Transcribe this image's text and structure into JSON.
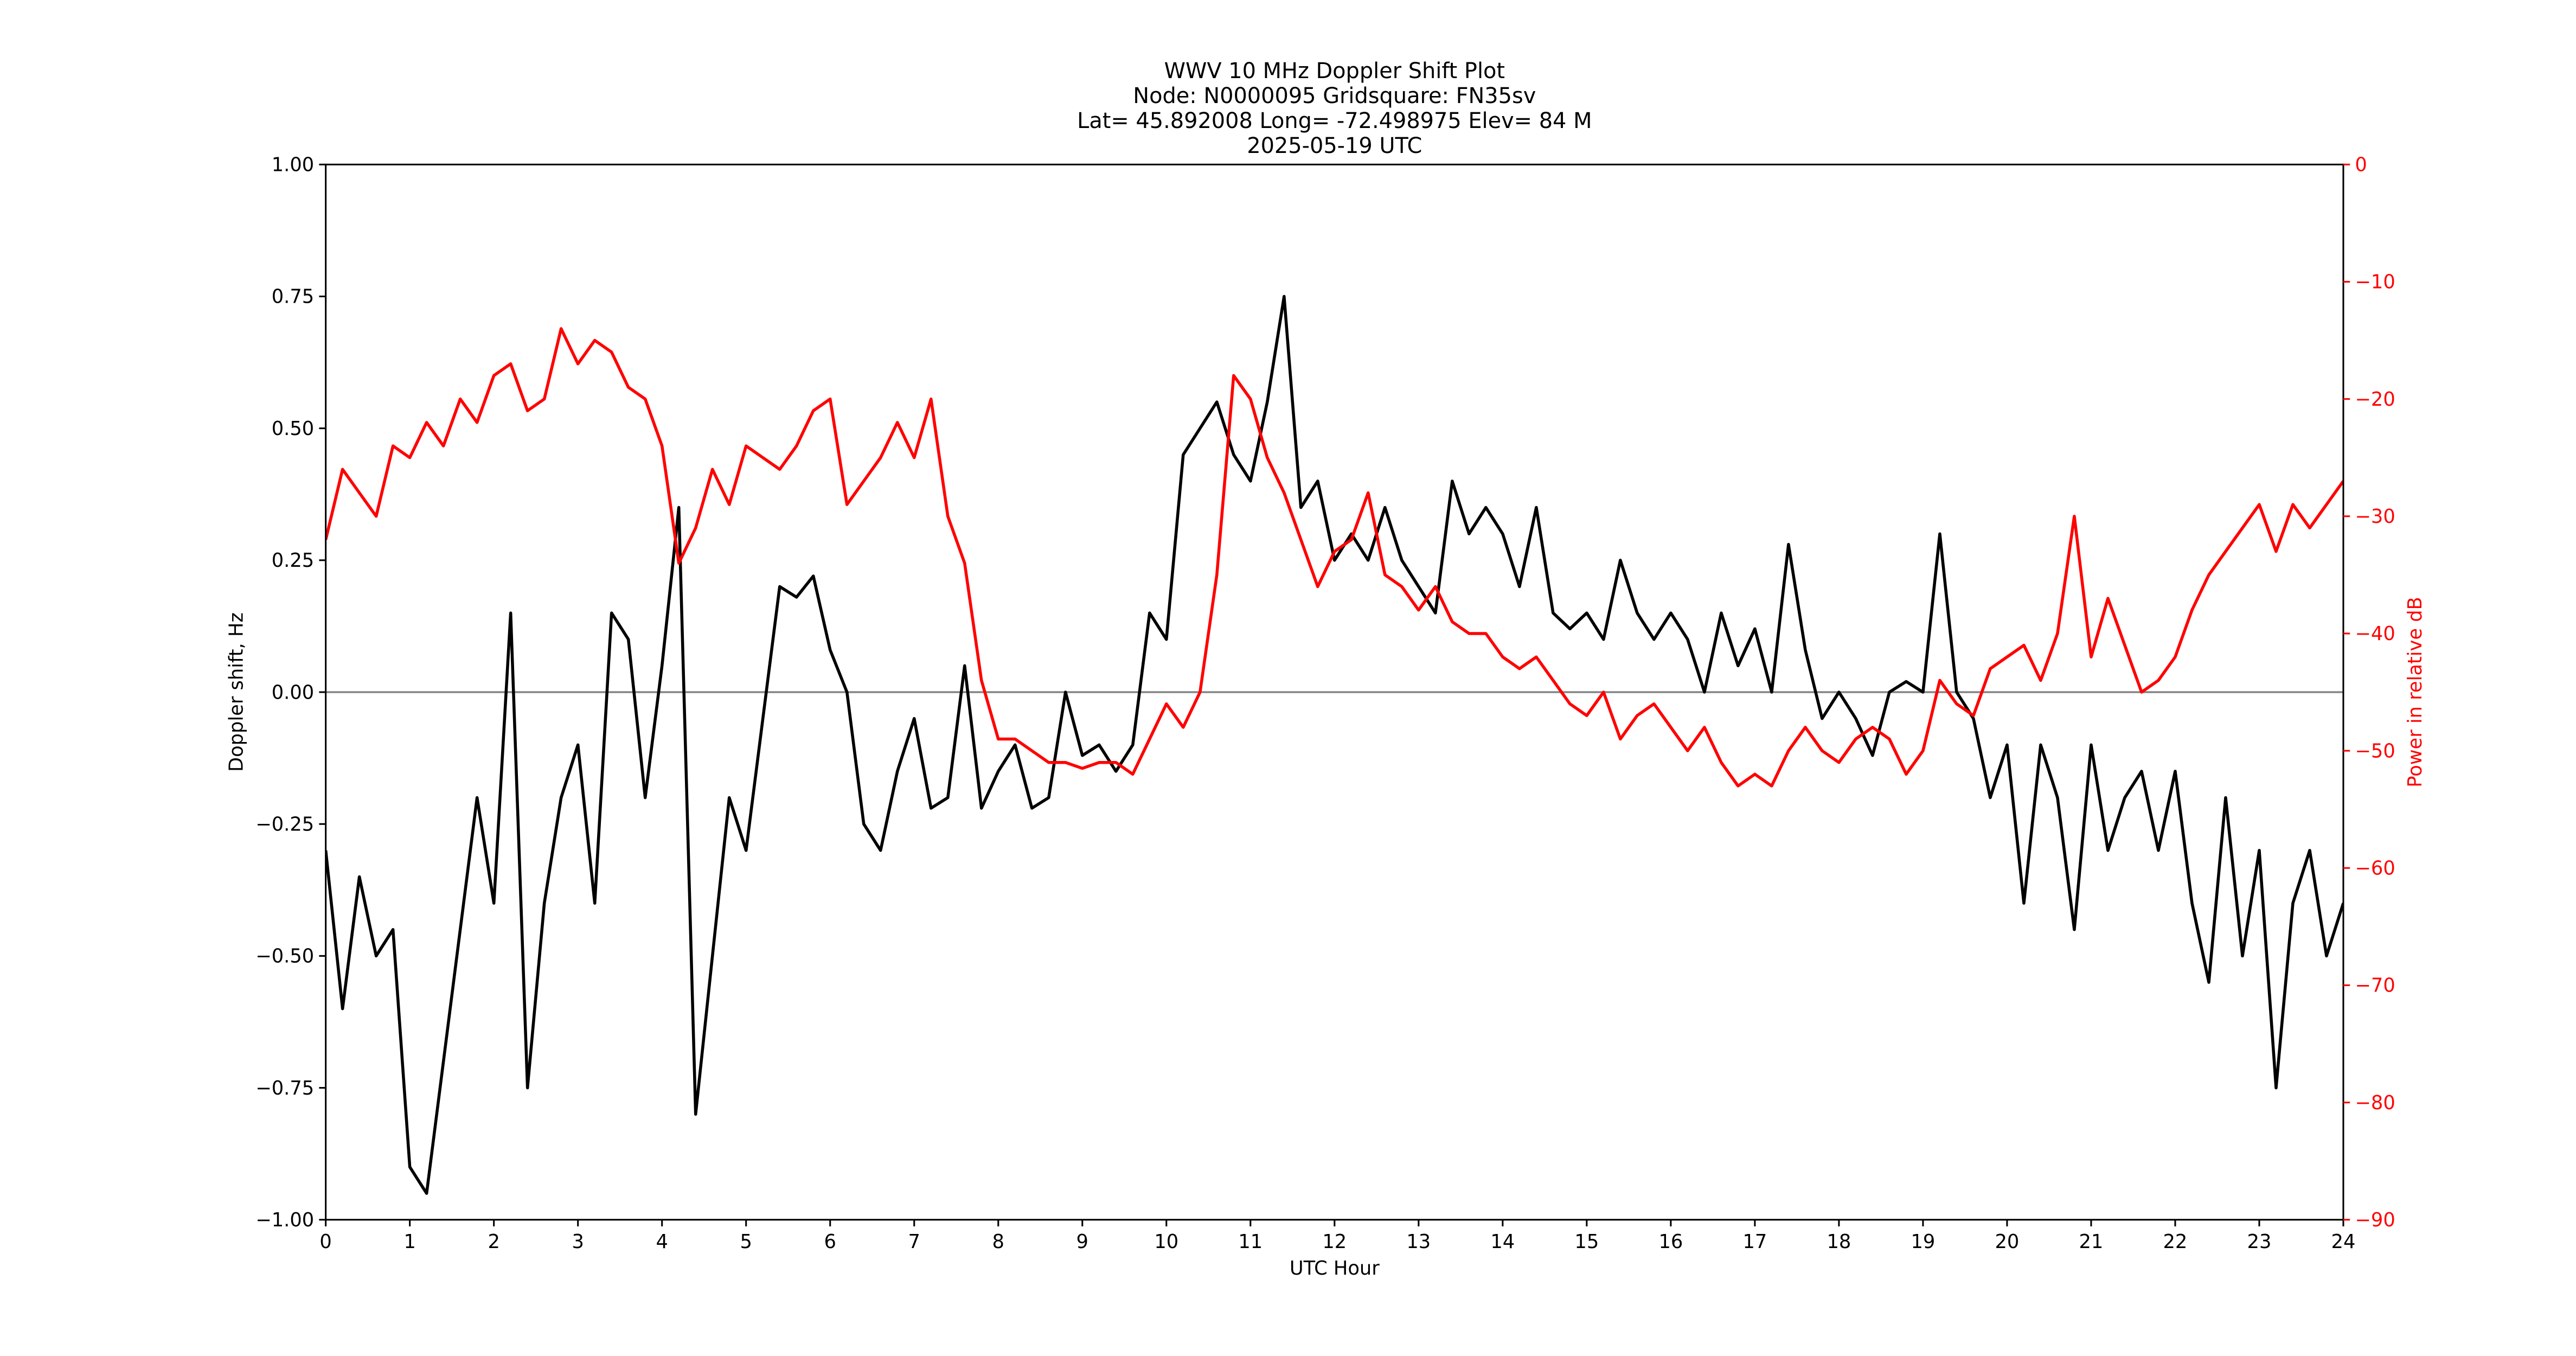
{
  "chart_data": {
    "type": "line",
    "title": [
      "WWV 10 MHz Doppler Shift Plot",
      "Node:  N0000095     Gridsquare:  FN35sv",
      "Lat= 45.892008    Long= -72.498975    Elev= 84 M",
      "2025-05-19  UTC"
    ],
    "x_label": "UTC Hour",
    "y_label": "Doppler shift, Hz",
    "y2_label": "Power in relative dB",
    "y2_color": "#ff0000",
    "xlim": [
      0,
      24
    ],
    "xticks": [
      0,
      1,
      2,
      3,
      4,
      5,
      6,
      7,
      8,
      9,
      10,
      11,
      12,
      13,
      14,
      15,
      16,
      17,
      18,
      19,
      20,
      21,
      22,
      23,
      24
    ],
    "ylim": [
      -1,
      1
    ],
    "yticks": [
      {
        "value": -1,
        "label": "−1.00"
      },
      {
        "value": -0.75,
        "label": "−0.75"
      },
      {
        "value": -0.5,
        "label": "−0.50"
      },
      {
        "value": -0.25,
        "label": "−0.25"
      },
      {
        "value": 0,
        "label": "0.00"
      },
      {
        "value": 0.25,
        "label": "0.25"
      },
      {
        "value": 0.5,
        "label": "0.50"
      },
      {
        "value": 0.75,
        "label": "0.75"
      },
      {
        "value": 1,
        "label": "1.00"
      }
    ],
    "y2lim": [
      -90,
      0
    ],
    "y2ticks": [
      {
        "value": -90,
        "label": "−90"
      },
      {
        "value": -80,
        "label": "−80"
      },
      {
        "value": -70,
        "label": "−70"
      },
      {
        "value": -60,
        "label": "−60"
      },
      {
        "value": -50,
        "label": "−50"
      },
      {
        "value": -40,
        "label": "−40"
      },
      {
        "value": -30,
        "label": "−30"
      },
      {
        "value": -20,
        "label": "−20"
      },
      {
        "value": -10,
        "label": "−10"
      },
      0
    ],
    "hline": {
      "value": 0,
      "color": "#888888"
    },
    "x": [
      0,
      0.2,
      0.4,
      0.6,
      0.8,
      1,
      1.2,
      1.4,
      1.6,
      1.8,
      2,
      2.2,
      2.4,
      2.6,
      2.8,
      3,
      3.2,
      3.4,
      3.6,
      3.8,
      4,
      4.2,
      4.4,
      4.6,
      4.8,
      5,
      5.2,
      5.4,
      5.6,
      5.8,
      6,
      6.2,
      6.4,
      6.6,
      6.8,
      7,
      7.2,
      7.4,
      7.6,
      7.8,
      8,
      8.2,
      8.4,
      8.6,
      8.8,
      9,
      9.2,
      9.4,
      9.6,
      9.8,
      10,
      10.2,
      10.4,
      10.6,
      10.8,
      11,
      11.2,
      11.4,
      11.6,
      11.8,
      12,
      12.2,
      12.4,
      12.6,
      12.8,
      13,
      13.2,
      13.4,
      13.6,
      13.8,
      14,
      14.2,
      14.4,
      14.6,
      14.8,
      15,
      15.2,
      15.4,
      15.6,
      15.8,
      16,
      16.2,
      16.4,
      16.6,
      16.8,
      17,
      17.2,
      17.4,
      17.6,
      17.8,
      18,
      18.2,
      18.4,
      18.6,
      18.8,
      19,
      19.2,
      19.4,
      19.6,
      19.8,
      20,
      20.2,
      20.4,
      20.6,
      20.8,
      21,
      21.2,
      21.4,
      21.6,
      21.8,
      22,
      22.2,
      22.4,
      22.6,
      22.8,
      23,
      23.2,
      23.4,
      23.6,
      23.8,
      24
    ],
    "series": [
      {
        "color": "#000000",
        "values": [
          -0.3,
          -0.6,
          -0.35,
          -0.5,
          -0.45,
          -0.9,
          -0.95,
          -0.7,
          -0.45,
          -0.2,
          -0.4,
          0.15,
          -0.75,
          -0.4,
          -0.2,
          -0.1,
          -0.4,
          0.15,
          0.1,
          -0.2,
          0.05,
          0.35,
          -0.8,
          -0.5,
          -0.2,
          -0.3,
          -0.05,
          0.2,
          0.18,
          0.22,
          0.08,
          0,
          -0.25,
          -0.3,
          -0.15,
          -0.05,
          -0.22,
          -0.2,
          0.05,
          -0.22,
          -0.15,
          -0.1,
          -0.22,
          -0.2,
          0,
          -0.12,
          -0.1,
          -0.15,
          -0.1,
          0.15,
          0.1,
          0.45,
          0.5,
          0.55,
          0.45,
          0.4,
          0.55,
          0.75,
          0.35,
          0.4,
          0.25,
          0.3,
          0.25,
          0.35,
          0.25,
          0.2,
          0.15,
          0.4,
          0.3,
          0.35,
          0.3,
          0.2,
          0.35,
          0.15,
          0.12,
          0.15,
          0.1,
          0.25,
          0.15,
          0.1,
          0.15,
          0.1,
          0,
          0.15,
          0.05,
          0.12,
          0,
          0.28,
          0.08,
          -0.05,
          0,
          -0.05,
          -0.12,
          0,
          0.02,
          0,
          0.3,
          0,
          -0.05,
          -0.2,
          -0.1,
          -0.4,
          -0.1,
          -0.2,
          -0.45,
          -0.1,
          -0.3,
          -0.2,
          -0.15,
          -0.3,
          -0.15,
          -0.4,
          -0.55,
          -0.2,
          -0.5,
          -0.3,
          -0.75,
          -0.4,
          -0.3,
          -0.5,
          -0.4
        ]
      },
      {
        "color": "#ff0000",
        "axis": "y2",
        "values": [
          -32,
          -26,
          -28,
          -30,
          -24,
          -25,
          -22,
          -24,
          -20,
          -22,
          -18,
          -17,
          -21,
          -20,
          -14,
          -17,
          -15,
          -16,
          -19,
          -20,
          -24,
          -34,
          -31,
          -26,
          -29,
          -24,
          -25,
          -26,
          -24,
          -21,
          -20,
          -29,
          -27,
          -25,
          -22,
          -25,
          -20,
          -30,
          -34,
          -44,
          -49,
          -49,
          -50,
          -51,
          -51,
          -51.5,
          -51,
          -51,
          -52,
          -49,
          -46,
          -48,
          -45,
          -35,
          -18,
          -20,
          -25,
          -28,
          -32,
          -36,
          -33,
          -32,
          -28,
          -35,
          -36,
          -38,
          -36,
          -39,
          -40,
          -40,
          -42,
          -43,
          -42,
          -44,
          -46,
          -47,
          -45,
          -49,
          -47,
          -46,
          -48,
          -50,
          -48,
          -51,
          -53,
          -52,
          -53,
          -50,
          -48,
          -50,
          -51,
          -49,
          -48,
          -49,
          -52,
          -50,
          -44,
          -46,
          -47,
          -43,
          -42,
          -41,
          -44,
          -40,
          -30,
          -42,
          -37,
          -41,
          -45,
          -44,
          -42,
          -38,
          -35,
          -33,
          -31,
          -29,
          -33,
          -29,
          -31,
          -29,
          -27
        ]
      }
    ]
  }
}
